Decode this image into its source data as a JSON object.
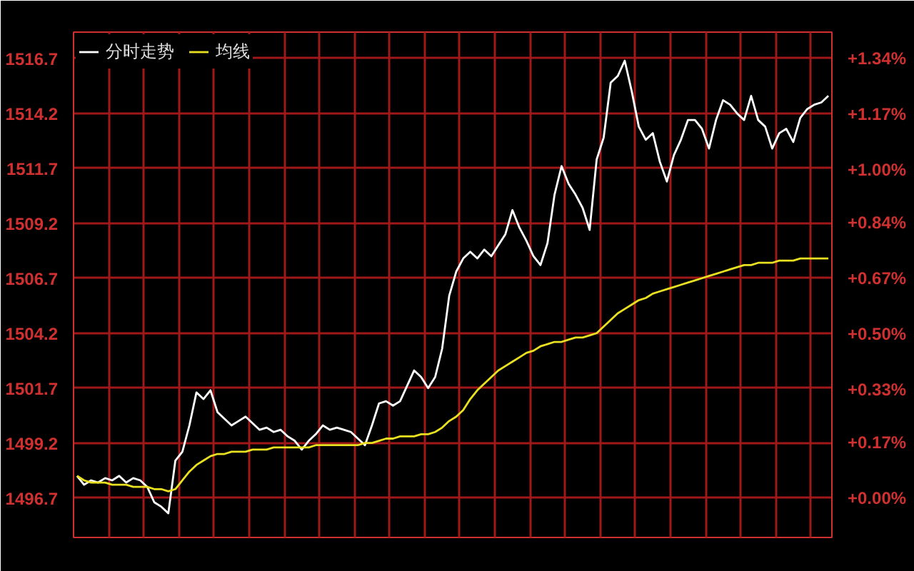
{
  "chart_data": {
    "type": "line",
    "categories": [
      null,
      null,
      null,
      null,
      null,
      null,
      null,
      null,
      null,
      null,
      null,
      null,
      null,
      null,
      null,
      null,
      null,
      null,
      null,
      null,
      null,
      null,
      null,
      null,
      null,
      null,
      null,
      null,
      null,
      null,
      null,
      null,
      null,
      null,
      null,
      null,
      null,
      null,
      null,
      null,
      null,
      null,
      null,
      null,
      null,
      null,
      null,
      null,
      null,
      null,
      null,
      null,
      null,
      null,
      null,
      null,
      null,
      null,
      null,
      null,
      null,
      null,
      null,
      null,
      null,
      null,
      null,
      null,
      null,
      null,
      null,
      null,
      null,
      null,
      null,
      null,
      null,
      null,
      null,
      null,
      null,
      null,
      null,
      null,
      null,
      null,
      null,
      null,
      null,
      null,
      null,
      null,
      null,
      null,
      null,
      null,
      null,
      null,
      null,
      null,
      null,
      null,
      null,
      null,
      null,
      null,
      null,
      null
    ],
    "series": [
      {
        "name": "分时走势",
        "color": "#ffffff",
        "values": [
          1497.7,
          1497.3,
          1497.5,
          1497.4,
          1497.6,
          1497.5,
          1497.7,
          1497.4,
          1497.6,
          1497.5,
          1497.2,
          1496.5,
          1496.3,
          1496.0,
          1498.4,
          1498.8,
          1500.0,
          1501.5,
          1501.2,
          1501.6,
          1500.6,
          1500.3,
          1500.0,
          1500.2,
          1500.4,
          1500.1,
          1499.8,
          1499.9,
          1499.7,
          1499.8,
          1499.5,
          1499.3,
          1498.9,
          1499.3,
          1499.6,
          1500.0,
          1499.8,
          1499.9,
          1499.8,
          1499.7,
          1499.4,
          1499.1,
          1500.0,
          1501.0,
          1501.1,
          1500.9,
          1501.1,
          1501.8,
          1502.5,
          1502.2,
          1501.7,
          1502.2,
          1503.5,
          1505.9,
          1507.0,
          1507.6,
          1507.9,
          1507.6,
          1508.0,
          1507.7,
          1508.2,
          1508.7,
          1509.8,
          1509.0,
          1508.4,
          1507.7,
          1507.3,
          1508.3,
          1510.5,
          1511.8,
          1511.0,
          1510.5,
          1509.9,
          1508.9,
          1512.1,
          1513.1,
          1515.6,
          1515.9,
          1516.6,
          1515.2,
          1513.6,
          1513.0,
          1513.3,
          1512.0,
          1511.1,
          1512.3,
          1513.0,
          1513.9,
          1513.9,
          1513.5,
          1512.6,
          1513.9,
          1514.8,
          1514.6,
          1514.2,
          1513.9,
          1515.0,
          1513.9,
          1513.6,
          1512.6,
          1513.3,
          1513.5,
          1512.9,
          1514.0,
          1514.4,
          1514.6,
          1514.7,
          1515.0
        ]
      },
      {
        "name": "均线",
        "color": "#e8e020",
        "values": [
          1497.7,
          1497.5,
          1497.4,
          1497.4,
          1497.4,
          1497.3,
          1497.3,
          1497.3,
          1497.2,
          1497.2,
          1497.2,
          1497.1,
          1497.1,
          1497.0,
          1497.1,
          1497.5,
          1497.9,
          1498.2,
          1498.4,
          1498.6,
          1498.7,
          1498.7,
          1498.8,
          1498.8,
          1498.8,
          1498.9,
          1498.9,
          1498.9,
          1499.0,
          1499.0,
          1499.0,
          1499.0,
          1499.0,
          1499.0,
          1499.1,
          1499.1,
          1499.1,
          1499.1,
          1499.1,
          1499.1,
          1499.1,
          1499.2,
          1499.2,
          1499.3,
          1499.4,
          1499.4,
          1499.5,
          1499.5,
          1499.5,
          1499.6,
          1499.6,
          1499.7,
          1499.9,
          1500.2,
          1500.4,
          1500.7,
          1501.2,
          1501.6,
          1501.9,
          1502.2,
          1502.5,
          1502.7,
          1502.9,
          1503.1,
          1503.3,
          1503.4,
          1503.6,
          1503.7,
          1503.8,
          1503.8,
          1503.9,
          1504.0,
          1504.0,
          1504.1,
          1504.2,
          1504.5,
          1504.8,
          1505.1,
          1505.3,
          1505.5,
          1505.7,
          1505.8,
          1506.0,
          1506.1,
          1506.2,
          1506.3,
          1506.4,
          1506.5,
          1506.6,
          1506.7,
          1506.8,
          1506.9,
          1507.0,
          1507.1,
          1507.2,
          1507.3,
          1507.3,
          1507.4,
          1507.4,
          1507.4,
          1507.5,
          1507.5,
          1507.5,
          1507.6,
          1507.6,
          1507.6,
          1507.6,
          1507.6
        ]
      }
    ],
    "ylim": [
      1494.9,
      1517.9
    ],
    "yticks": [
      1496.7,
      1499.2,
      1501.7,
      1504.2,
      1506.7,
      1509.2,
      1511.7,
      1514.2,
      1516.7
    ],
    "y2lim": [
      -0.12,
      1.42
    ],
    "y2ticks": [
      {
        "value": 0.0,
        "label": "+0.00%"
      },
      {
        "value": 0.17,
        "label": "+0.17%"
      },
      {
        "value": 0.33,
        "label": "+0.33%"
      },
      {
        "value": 0.5,
        "label": "+0.50%"
      },
      {
        "value": 0.67,
        "label": "+0.67%"
      },
      {
        "value": 0.84,
        "label": "+0.84%"
      },
      {
        "value": 1.0,
        "label": "+1.00%"
      },
      {
        "value": 1.17,
        "label": "+1.17%"
      },
      {
        "value": 1.34,
        "label": "+1.34%"
      }
    ],
    "tick_labels": "y",
    "grid": true,
    "legend": "top left",
    "marker": "none",
    "line_style": "solid"
  }
}
